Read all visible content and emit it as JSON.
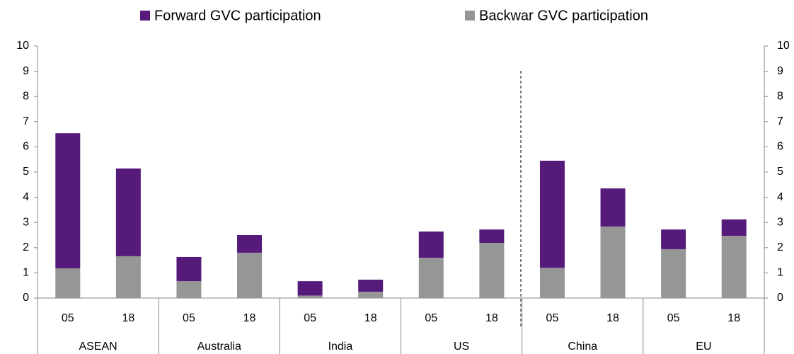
{
  "chart_data": {
    "type": "bar",
    "stacked": true,
    "categories": [
      "05",
      "18",
      "05",
      "18",
      "05",
      "18",
      "05",
      "18",
      "05",
      "18",
      "05",
      "18"
    ],
    "groups": [
      "ASEAN",
      "Australia",
      "India",
      "US",
      "China",
      "EU"
    ],
    "series": [
      {
        "name": "Forward GVC participation",
        "color": "#561a7a",
        "values": [
          5.36,
          3.48,
          0.96,
          0.7,
          0.57,
          0.48,
          1.04,
          0.53,
          4.25,
          1.51,
          0.78,
          0.65
        ]
      },
      {
        "name": "Backwar GVC participation",
        "color": "#969696",
        "values": [
          1.18,
          1.66,
          0.67,
          1.8,
          0.1,
          0.25,
          1.6,
          2.19,
          1.2,
          2.84,
          1.94,
          2.47
        ]
      }
    ],
    "stack_order": [
      1,
      0
    ],
    "ylim": [
      0,
      10
    ],
    "yticks": [
      0,
      1,
      2,
      3,
      4,
      5,
      6,
      7,
      8,
      9,
      10
    ]
  }
}
